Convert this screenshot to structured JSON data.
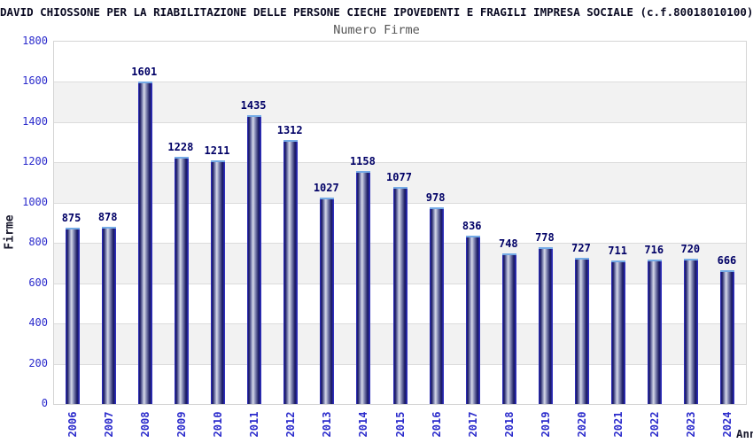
{
  "header": {
    "title": "DAVID CHIOSSONE PER LA RIABILITAZIONE DELLE PERSONE CIECHE IPOVEDENTI E FRAGILI IMPRESA SOCIALE (c.f.80018010100)",
    "subtitle": "Numero Firme"
  },
  "chart_data": {
    "type": "bar",
    "title": "Numero Firme",
    "xlabel": "Anno",
    "ylabel": "Firme",
    "categories": [
      "2006",
      "2007",
      "2008",
      "2009",
      "2010",
      "2011",
      "2012",
      "2013",
      "2014",
      "2015",
      "2016",
      "2017",
      "2018",
      "2019",
      "2020",
      "2021",
      "2022",
      "2023",
      "2024"
    ],
    "values": [
      875,
      878,
      1601,
      1228,
      1211,
      1435,
      1312,
      1027,
      1158,
      1077,
      978,
      836,
      748,
      778,
      727,
      711,
      716,
      720,
      666
    ],
    "ylim": [
      0,
      1800
    ],
    "ytick_step": 200,
    "yticks": [
      0,
      200,
      400,
      600,
      800,
      1000,
      1200,
      1400,
      1600,
      1800
    ],
    "grid": true,
    "legend": "none",
    "colors": {
      "bar_edge": "#3434d0",
      "bar_dark": "#17175f",
      "bar_mid": "#8a8fb8",
      "bar_light": "#d6d9e8",
      "bar_cap": "#74aae6",
      "axis_tick_label": "#2b2bcc",
      "value_label": "#000066",
      "band": "#f2f2f2",
      "gridline": "#dcdcdc",
      "plot_border": "#d4d4d4",
      "title": "#0a0a22",
      "subtitle": "#555555",
      "axis_title": "#1a1a2e"
    }
  }
}
